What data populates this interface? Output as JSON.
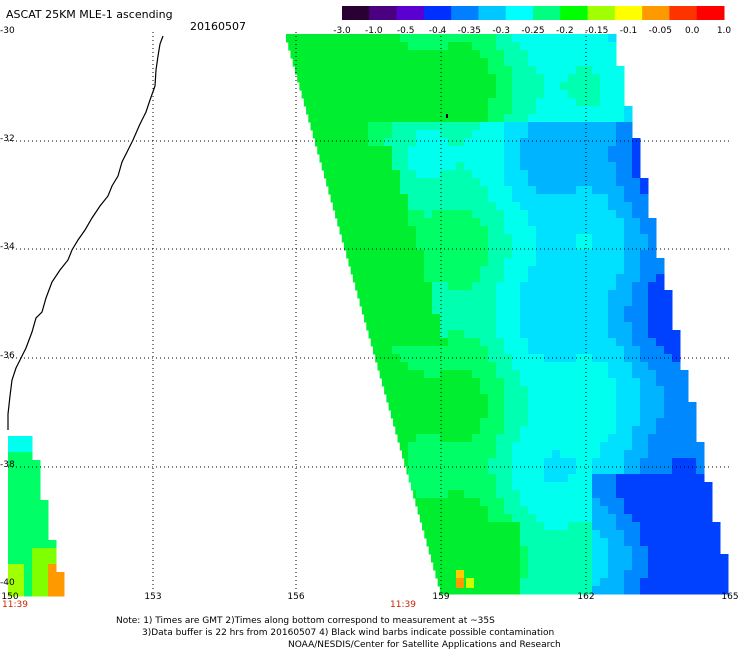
{
  "header": {
    "title": "ASCAT 25KM MLE-1 ascending",
    "date": "20160507"
  },
  "colorbar": {
    "labels": [
      "-3.0",
      "-1.0",
      "-0.5",
      "-0.4",
      "-0.35",
      "-0.3",
      "-0.25",
      "-0.2",
      "-0.15",
      "-0.1",
      "-0.05",
      "0.0",
      "1.0"
    ],
    "colors": [
      "#2a0033",
      "#4b0082",
      "#5a00d0",
      "#0030ff",
      "#0080ff",
      "#00c8ff",
      "#00ffff",
      "#00ff80",
      "#00ff00",
      "#a0ff00",
      "#ffff00",
      "#ff9900",
      "#ff3300",
      "#ff0000"
    ]
  },
  "axes": {
    "lat_labels": [
      "-30",
      "-32",
      "-34",
      "-36",
      "-38",
      "-40"
    ],
    "lon_labels": [
      "150",
      "153",
      "156",
      "159",
      "162",
      "165"
    ]
  },
  "times": {
    "left": "11:39",
    "middle": "11:39"
  },
  "notes": {
    "line1": "Note: 1) Times are GMT 2)Times along bottom correspond to measurement at ~35S",
    "line2": "3)Data buffer is 22 hrs from 20160507 4) Black wind barbs indicate possible contamination",
    "line3": "NOAA/NESDIS/Center for Satellite Applications and Research"
  }
}
